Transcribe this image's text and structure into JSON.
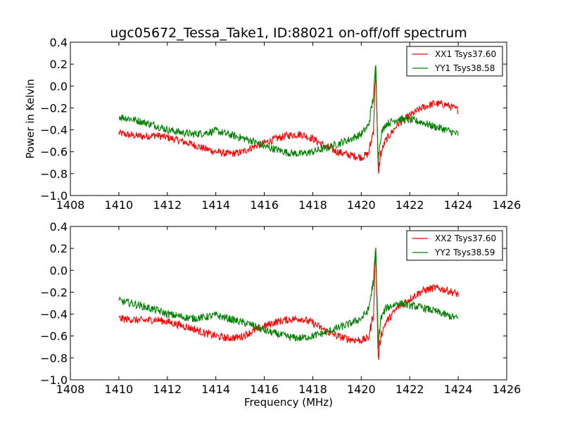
{
  "title": "ugc05672_Tessa_Take1, ID:88021 on-off/off spectrum",
  "colors": {
    "xx": "#ff0000",
    "yy": "#008000"
  },
  "chart_data": [
    {
      "type": "line",
      "xlabel": "",
      "ylabel": "Power in Kelvin",
      "xlim": [
        1408,
        1426
      ],
      "ylim": [
        -1.0,
        0.4
      ],
      "xticks": [
        "1408",
        "1410",
        "1412",
        "1414",
        "1416",
        "1418",
        "1420",
        "1422",
        "1424",
        "1426"
      ],
      "yticks": [
        "−1.0",
        "−0.8",
        "−0.6",
        "−0.4",
        "−0.2",
        "0.0",
        "0.2",
        "0.4"
      ],
      "grid": false,
      "legend": "top-right",
      "series": [
        {
          "name": "XX1 Tsys37.60",
          "color": "#ff0000",
          "x": [
            1410.0,
            1410.5,
            1411.0,
            1411.5,
            1412.0,
            1412.5,
            1413.0,
            1413.5,
            1414.0,
            1414.5,
            1415.0,
            1415.5,
            1416.0,
            1416.5,
            1417.0,
            1417.5,
            1418.0,
            1418.5,
            1419.0,
            1419.5,
            1420.0,
            1420.3,
            1420.5,
            1420.6,
            1420.7,
            1420.8,
            1421.0,
            1421.5,
            1422.0,
            1422.5,
            1423.0,
            1423.5,
            1424.0
          ],
          "y": [
            -0.43,
            -0.45,
            -0.46,
            -0.45,
            -0.47,
            -0.5,
            -0.53,
            -0.57,
            -0.6,
            -0.62,
            -0.61,
            -0.56,
            -0.52,
            -0.48,
            -0.45,
            -0.44,
            -0.48,
            -0.55,
            -0.6,
            -0.63,
            -0.65,
            -0.62,
            -0.4,
            0.18,
            -0.8,
            -0.62,
            -0.5,
            -0.35,
            -0.27,
            -0.2,
            -0.16,
            -0.17,
            -0.22
          ]
        },
        {
          "name": "YY1 Tsys38.58",
          "color": "#008000",
          "x": [
            1410.0,
            1410.5,
            1411.0,
            1411.5,
            1412.0,
            1412.5,
            1413.0,
            1413.5,
            1414.0,
            1414.5,
            1415.0,
            1415.5,
            1416.0,
            1416.5,
            1417.0,
            1417.5,
            1418.0,
            1418.5,
            1419.0,
            1419.5,
            1420.0,
            1420.3,
            1420.5,
            1420.6,
            1420.7,
            1420.8,
            1421.0,
            1421.5,
            1422.0,
            1422.5,
            1423.0,
            1423.5,
            1424.0
          ],
          "y": [
            -0.28,
            -0.3,
            -0.33,
            -0.36,
            -0.4,
            -0.42,
            -0.44,
            -0.43,
            -0.41,
            -0.44,
            -0.47,
            -0.5,
            -0.55,
            -0.58,
            -0.61,
            -0.62,
            -0.6,
            -0.57,
            -0.53,
            -0.49,
            -0.44,
            -0.36,
            -0.1,
            0.2,
            -0.68,
            -0.45,
            -0.35,
            -0.3,
            -0.31,
            -0.33,
            -0.37,
            -0.4,
            -0.44
          ]
        }
      ]
    },
    {
      "type": "line",
      "xlabel": "Frequency (MHz)",
      "ylabel": "",
      "xlim": [
        1408,
        1426
      ],
      "ylim": [
        -1.0,
        0.4
      ],
      "xticks": [
        "1408",
        "1410",
        "1412",
        "1414",
        "1416",
        "1418",
        "1420",
        "1422",
        "1424",
        "1426"
      ],
      "yticks": [
        "−1.0",
        "−0.8",
        "−0.6",
        "−0.4",
        "−0.2",
        "0.0",
        "0.2",
        "0.4"
      ],
      "grid": false,
      "legend": "top-right",
      "series": [
        {
          "name": "XX2 Tsys37.60",
          "color": "#ff0000",
          "x": [
            1410.0,
            1410.5,
            1411.0,
            1411.5,
            1412.0,
            1412.5,
            1413.0,
            1413.5,
            1414.0,
            1414.5,
            1415.0,
            1415.5,
            1416.0,
            1416.5,
            1417.0,
            1417.5,
            1418.0,
            1418.5,
            1419.0,
            1419.5,
            1420.0,
            1420.3,
            1420.5,
            1420.6,
            1420.7,
            1420.8,
            1421.0,
            1421.5,
            1422.0,
            1422.5,
            1423.0,
            1423.5,
            1424.0
          ],
          "y": [
            -0.44,
            -0.45,
            -0.46,
            -0.45,
            -0.47,
            -0.5,
            -0.53,
            -0.57,
            -0.6,
            -0.62,
            -0.61,
            -0.56,
            -0.51,
            -0.47,
            -0.45,
            -0.44,
            -0.48,
            -0.55,
            -0.6,
            -0.63,
            -0.64,
            -0.62,
            -0.4,
            0.18,
            -0.82,
            -0.6,
            -0.48,
            -0.34,
            -0.26,
            -0.19,
            -0.16,
            -0.18,
            -0.22
          ]
        },
        {
          "name": "YY2 Tsys38.59",
          "color": "#008000",
          "x": [
            1410.0,
            1410.5,
            1411.0,
            1411.5,
            1412.0,
            1412.5,
            1413.0,
            1413.5,
            1414.0,
            1414.5,
            1415.0,
            1415.5,
            1416.0,
            1416.5,
            1417.0,
            1417.5,
            1418.0,
            1418.5,
            1419.0,
            1419.5,
            1420.0,
            1420.3,
            1420.5,
            1420.6,
            1420.7,
            1420.8,
            1421.0,
            1421.5,
            1422.0,
            1422.5,
            1423.0,
            1423.5,
            1424.0
          ],
          "y": [
            -0.28,
            -0.3,
            -0.33,
            -0.36,
            -0.4,
            -0.42,
            -0.44,
            -0.43,
            -0.41,
            -0.44,
            -0.47,
            -0.5,
            -0.55,
            -0.58,
            -0.61,
            -0.62,
            -0.6,
            -0.57,
            -0.53,
            -0.49,
            -0.44,
            -0.36,
            -0.1,
            0.2,
            -0.67,
            -0.45,
            -0.35,
            -0.3,
            -0.32,
            -0.34,
            -0.37,
            -0.41,
            -0.44
          ]
        }
      ]
    }
  ]
}
